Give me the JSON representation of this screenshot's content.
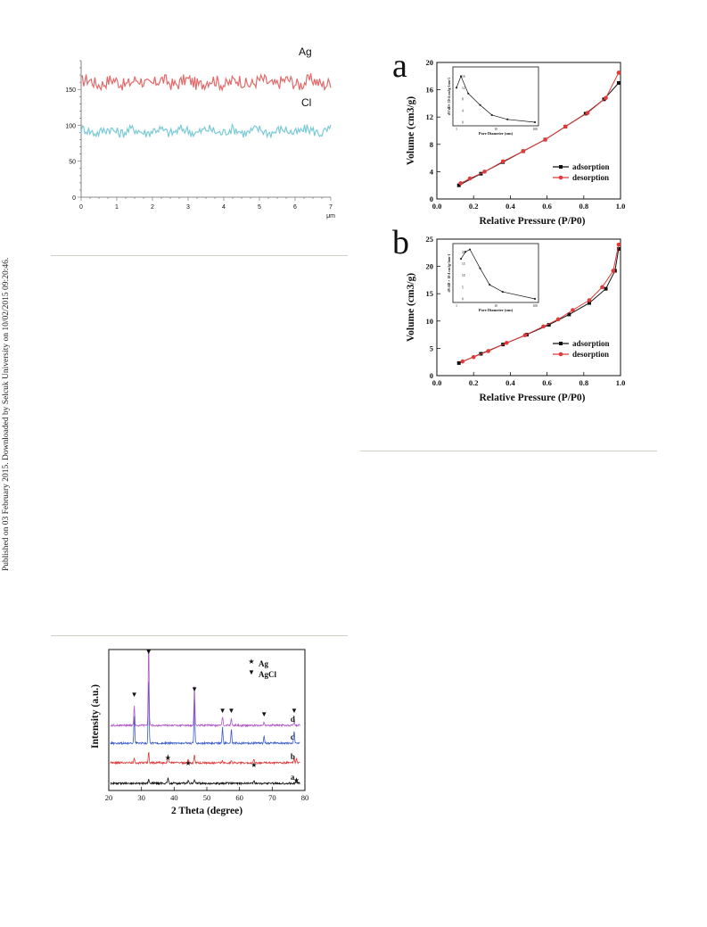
{
  "sidebar_note": "Published on 03 February 2015. Downloaded by Selcuk University on 10/02/2015 09:20:46.",
  "chart_data": [
    {
      "type": "line",
      "xlim": [
        0,
        7
      ],
      "ylim": [
        0,
        190
      ],
      "xticks": [
        "0",
        "1",
        "2",
        "3",
        "4",
        "5",
        "6",
        "7"
      ],
      "yticks": [
        "0",
        "50",
        "100",
        "150"
      ],
      "xunit": "μm",
      "series": [
        {
          "name": "Ag",
          "color": "#e36a6a",
          "baseline": 160,
          "amplitude": 9
        },
        {
          "name": "Cl",
          "color": "#7ccbd6",
          "baseline": 92,
          "amplitude": 7
        }
      ]
    },
    {
      "type": "line",
      "panel_label": "a",
      "xlabel": "Relative Pressure (P/P0)",
      "ylabel": "Volume (cm3/g)",
      "xlim": [
        0,
        1.0
      ],
      "ylim": [
        0,
        20
      ],
      "xticks": [
        "0.0",
        "0.2",
        "0.4",
        "0.6",
        "0.8",
        "1.0"
      ],
      "yticks": [
        "0",
        "4",
        "8",
        "12",
        "16",
        "20"
      ],
      "series": [
        {
          "name": "adsorption",
          "color": "#111111",
          "x": [
            0.12,
            0.24,
            0.36,
            0.47,
            0.59,
            0.7,
            0.81,
            0.91,
            0.99
          ],
          "y": [
            2.0,
            3.7,
            5.4,
            7.0,
            8.7,
            10.6,
            12.5,
            14.6,
            17.0
          ]
        },
        {
          "name": "desorption",
          "color": "#e03a3a",
          "x": [
            0.13,
            0.18,
            0.26,
            0.36,
            0.47,
            0.59,
            0.7,
            0.82,
            0.92,
            0.99
          ],
          "y": [
            2.3,
            3.0,
            4.0,
            5.5,
            7.0,
            8.7,
            10.6,
            12.6,
            14.8,
            18.5
          ]
        }
      ],
      "inset": {
        "xlabel": "Pore Diameter (nm)",
        "ylabel": "dV/dD× 10-4 cm3g-1nm-1",
        "xticks": [
          "1",
          "10",
          "100"
        ],
        "yticks": [
          "0",
          "4",
          "8",
          "12",
          "16"
        ],
        "points": [
          [
            1.0,
            12
          ],
          [
            1.3,
            16
          ],
          [
            2,
            10
          ],
          [
            4,
            6
          ],
          [
            8,
            2.5
          ],
          [
            20,
            1
          ],
          [
            100,
            0
          ]
        ]
      }
    },
    {
      "type": "line",
      "panel_label": "b",
      "xlabel": "Relative Pressure (P/P0)",
      "ylabel": "Volume (cm3/g)",
      "xlim": [
        0,
        1.0
      ],
      "ylim": [
        0,
        25
      ],
      "xticks": [
        "0.0",
        "0.2",
        "0.4",
        "0.6",
        "0.8",
        "1.0"
      ],
      "yticks": [
        "0",
        "5",
        "10",
        "15",
        "20",
        "25"
      ],
      "series": [
        {
          "name": "adsorption",
          "color": "#111111",
          "x": [
            0.12,
            0.24,
            0.36,
            0.49,
            0.61,
            0.72,
            0.83,
            0.92,
            0.97,
            0.99
          ],
          "y": [
            2.3,
            4.0,
            5.7,
            7.5,
            9.3,
            11.2,
            13.3,
            15.9,
            19.2,
            23.2
          ]
        },
        {
          "name": "desorption",
          "color": "#e03a3a",
          "x": [
            0.14,
            0.2,
            0.28,
            0.38,
            0.48,
            0.58,
            0.66,
            0.74,
            0.83,
            0.9,
            0.96,
            0.99
          ],
          "y": [
            2.6,
            3.4,
            4.5,
            6.0,
            7.4,
            9.0,
            10.3,
            12.0,
            13.8,
            16.2,
            19.2,
            24.0
          ]
        }
      ],
      "inset": {
        "xlabel": "Pore Diameter (nm)",
        "ylabel": "dV/dD × 10-4 cm3g-1nm-1",
        "xticks": [
          "1",
          "10",
          "100"
        ],
        "yticks": [
          "0",
          "5",
          "10",
          "15",
          "20"
        ],
        "points": [
          [
            1.3,
            17
          ],
          [
            1.7,
            20
          ],
          [
            2.2,
            21
          ],
          [
            4,
            13
          ],
          [
            7,
            6
          ],
          [
            15,
            3
          ],
          [
            100,
            0
          ]
        ]
      }
    },
    {
      "type": "line",
      "xlabel": "2 Theta (degree)",
      "ylabel": "Intensity (a.u.)",
      "xlim": [
        20,
        80
      ],
      "xticks": [
        "20",
        "30",
        "40",
        "50",
        "60",
        "70",
        "80"
      ],
      "legend": [
        {
          "symbol": "★",
          "label": "Ag"
        },
        {
          "symbol": "▼",
          "label": "AgCl"
        }
      ],
      "series": [
        {
          "name": "a",
          "color": "#111111",
          "offset": 0,
          "peaks": [
            [
              32.2,
              5
            ],
            [
              38.1,
              6
            ],
            [
              44.3,
              3
            ],
            [
              46.2,
              4
            ],
            [
              64.4,
              3
            ],
            [
              77.4,
              3
            ]
          ]
        },
        {
          "name": "b",
          "color": "#e03a3a",
          "offset": 1,
          "peaks": [
            [
              27.8,
              6
            ],
            [
              32.2,
              12
            ],
            [
              38.1,
              10
            ],
            [
              44.3,
              5
            ],
            [
              46.2,
              9
            ],
            [
              54.8,
              3
            ],
            [
              57.5,
              3
            ],
            [
              64.4,
              4
            ],
            [
              76.7,
              6
            ],
            [
              77.4,
              5
            ]
          ]
        },
        {
          "name": "c",
          "color": "#3a5bc7",
          "offset": 2,
          "peaks": [
            [
              27.8,
              30
            ],
            [
              32.2,
              75
            ],
            [
              46.2,
              50
            ],
            [
              54.8,
              18
            ],
            [
              57.5,
              16
            ],
            [
              67.5,
              8
            ],
            [
              76.7,
              14
            ]
          ]
        },
        {
          "name": "d",
          "color": "#b05ac8",
          "offset": 3,
          "peaks": [
            [
              27.8,
              22
            ],
            [
              32.2,
              90
            ],
            [
              46.2,
              45
            ],
            [
              54.8,
              10
            ],
            [
              57.5,
              8
            ],
            [
              67.5,
              4
            ],
            [
              76.7,
              6
            ]
          ]
        }
      ],
      "markers": {
        "agcl": [
          27.8,
          32.2,
          46.2,
          54.8,
          57.5,
          67.5,
          76.7
        ],
        "ag": [
          38.1,
          44.3,
          64.4,
          77.4
        ]
      }
    }
  ]
}
